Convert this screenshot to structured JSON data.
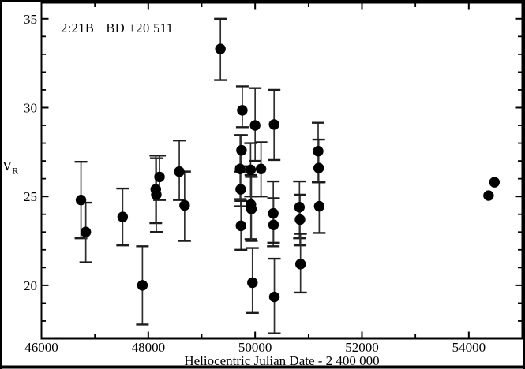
{
  "figure": {
    "title_left": "2:21B",
    "title_right": "BD +20 511",
    "y_axis_label_main": "V",
    "y_axis_label_sub": "R",
    "x_axis_title": "Heliocentric Julian Date - 2 400 000"
  },
  "colors": {
    "background": "#ffffff",
    "border": "#000000",
    "frame": "#000000",
    "marker": "#000000",
    "error_bar": "#303030",
    "error_cap": "#1c1c1c",
    "text": "#000000"
  },
  "chart_data": {
    "type": "scatter",
    "title": "2:21B  BD +20 511",
    "xlabel": "Heliocentric Julian Date - 2 400 000",
    "ylabel": "V_R",
    "xlim": [
      46000,
      55000
    ],
    "ylim": [
      17.0,
      35.9
    ],
    "x_major_ticks": [
      46000,
      48000,
      50000,
      52000,
      54000
    ],
    "x_minor_step": 1000,
    "y_major_ticks": [
      20,
      25,
      30,
      35
    ],
    "y_minor_step": 1,
    "grid": false,
    "legend": false,
    "point_format": [
      "hjd",
      "v_r",
      "err_plus",
      "err_minus"
    ],
    "points": [
      [
        46740,
        24.8,
        2.15,
        2.15
      ],
      [
        46830,
        23.0,
        1.65,
        1.7
      ],
      [
        47520,
        23.85,
        1.6,
        1.6
      ],
      [
        47890,
        20.0,
        2.2,
        2.2
      ],
      [
        48140,
        25.4,
        1.9,
        1.9
      ],
      [
        48150,
        25.1,
        2.05,
        2.1
      ],
      [
        48210,
        26.1,
        1.2,
        1.3
      ],
      [
        48580,
        26.4,
        1.75,
        1.6
      ],
      [
        48680,
        24.5,
        1.9,
        2.0
      ],
      [
        49350,
        33.3,
        1.7,
        1.75
      ],
      [
        49720,
        26.55,
        1.9,
        1.7
      ],
      [
        49730,
        25.4,
        1.0,
        0.95
      ],
      [
        49735,
        23.35,
        1.4,
        1.35
      ],
      [
        49745,
        27.6,
        0.85,
        0.9
      ],
      [
        49760,
        29.85,
        1.35,
        0.95
      ],
      [
        49915,
        26.5,
        1.5,
        1.5
      ],
      [
        49920,
        24.55,
        1.65,
        1.95
      ],
      [
        49930,
        24.3,
        1.8,
        1.8
      ],
      [
        49950,
        20.15,
        1.95,
        1.7
      ],
      [
        50000,
        29.0,
        2.1,
        2.0
      ],
      [
        50110,
        26.55,
        1.5,
        1.55
      ],
      [
        50340,
        24.05,
        1.8,
        1.85
      ],
      [
        50345,
        23.4,
        1.5,
        1.0
      ],
      [
        50355,
        29.05,
        1.95,
        2.0
      ],
      [
        50360,
        19.35,
        2.15,
        2.05
      ],
      [
        50830,
        24.4,
        1.45,
        1.75
      ],
      [
        50840,
        23.7,
        1.4,
        1.45
      ],
      [
        50850,
        21.2,
        1.7,
        1.6
      ],
      [
        51180,
        27.55,
        1.6,
        1.75
      ],
      [
        51190,
        26.6,
        1.6,
        0.8
      ],
      [
        51200,
        24.45,
        1.35,
        1.5
      ],
      [
        54370,
        25.05,
        0.15,
        0.15
      ],
      [
        54480,
        25.8,
        0.15,
        0.15
      ]
    ]
  }
}
